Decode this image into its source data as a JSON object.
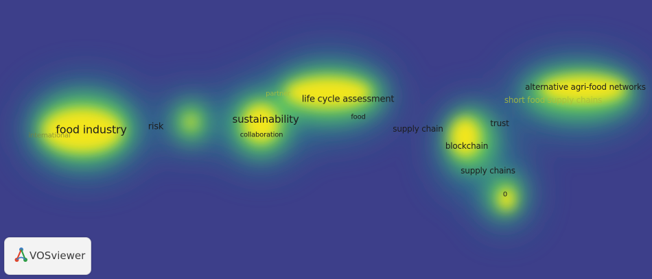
{
  "terms": [
    {
      "id": "food-industry",
      "label": "food industry"
    },
    {
      "id": "international",
      "label": "international"
    },
    {
      "id": "risk",
      "label": "risk"
    },
    {
      "id": "sustainability",
      "label": "sustainability"
    },
    {
      "id": "collaboration",
      "label": "collaboration"
    },
    {
      "id": "partial-term",
      "label": "partner"
    },
    {
      "id": "life-cycle-assessment",
      "label": "life cycle assessment"
    },
    {
      "id": "food",
      "label": "food"
    },
    {
      "id": "supply-chain",
      "label": "supply chain"
    },
    {
      "id": "trust",
      "label": "trust"
    },
    {
      "id": "blockchain",
      "label": "blockchain"
    },
    {
      "id": "supply-chains",
      "label": "supply chains"
    },
    {
      "id": "zero",
      "label": "0"
    },
    {
      "id": "alternative-agri-food-networks",
      "label": "alternative agri-food networks"
    },
    {
      "id": "short-food-supply-chains",
      "label": "short food supply chains"
    }
  ],
  "logo": {
    "text": "VOSviewer",
    "icon": "vosviewer-logo-icon"
  },
  "colors": {
    "background": "#3d3f8a",
    "density_low": "#21908c",
    "density_mid": "#5ec962",
    "density_high": "#f2e51d"
  }
}
